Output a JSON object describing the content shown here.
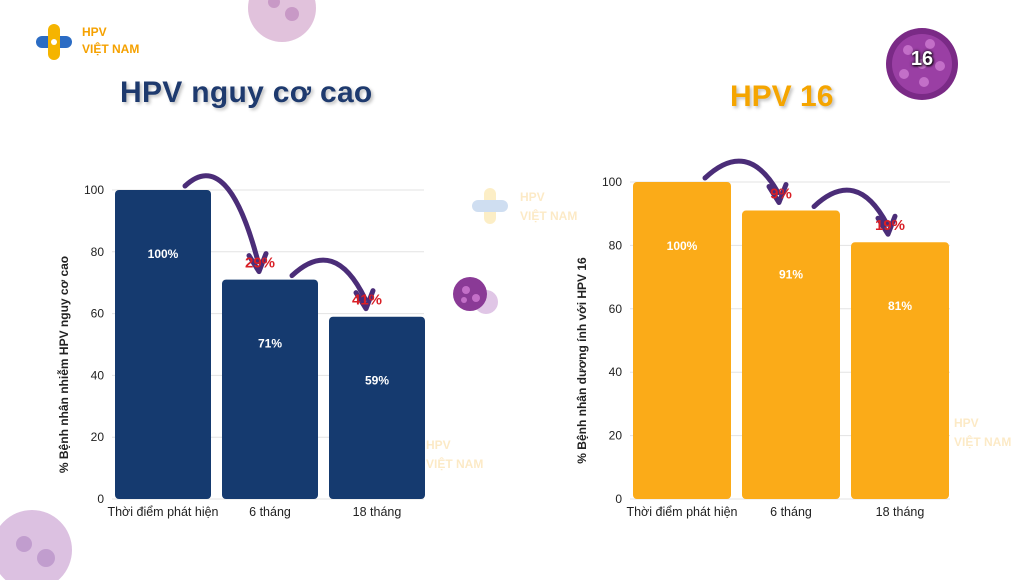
{
  "brand": {
    "line1": "HPV",
    "line2": "VIỆT NAM"
  },
  "left_title": "HPV nguy cơ cao",
  "right_title": "HPV 16",
  "badge_number": "16",
  "colors": {
    "navy": "#153a6f",
    "orange": "#fbab18",
    "red": "#d91f26",
    "arrow": "#4b2d78",
    "title_navy": "#1e3a6e",
    "title_orange": "#f5a500"
  },
  "chart_data": [
    {
      "type": "bar",
      "title": "HPV nguy cơ cao",
      "categories": [
        "Thời điểm phát hiện",
        "6 tháng",
        "18 tháng"
      ],
      "values": [
        100,
        71,
        59
      ],
      "bar_labels": [
        "100%",
        "71%",
        "59%"
      ],
      "ylabel": "% Bệnh nhân nhiễm HPV nguy cơ cao",
      "xlabel": "",
      "ylim": [
        0,
        100
      ],
      "yticks": [
        0,
        20,
        40,
        60,
        80,
        100
      ],
      "grid": true,
      "color": "#153a6f",
      "annotations": [
        {
          "from": 0,
          "to": 1,
          "text": "29%"
        },
        {
          "from": 1,
          "to": 2,
          "text": "41%"
        }
      ]
    },
    {
      "type": "bar",
      "title": "HPV 16",
      "categories": [
        "Thời điểm phát hiện",
        "6 tháng",
        "18 tháng"
      ],
      "values": [
        100,
        91,
        81
      ],
      "bar_labels": [
        "100%",
        "91%",
        "81%"
      ],
      "ylabel": "% Bệnh nhân dương ính với HPV 16",
      "xlabel": "",
      "ylim": [
        0,
        100
      ],
      "yticks": [
        0,
        20,
        40,
        60,
        80,
        100
      ],
      "grid": true,
      "color": "#fbab18",
      "annotations": [
        {
          "from": 0,
          "to": 1,
          "text": "9%"
        },
        {
          "from": 1,
          "to": 2,
          "text": "19%"
        }
      ]
    }
  ]
}
